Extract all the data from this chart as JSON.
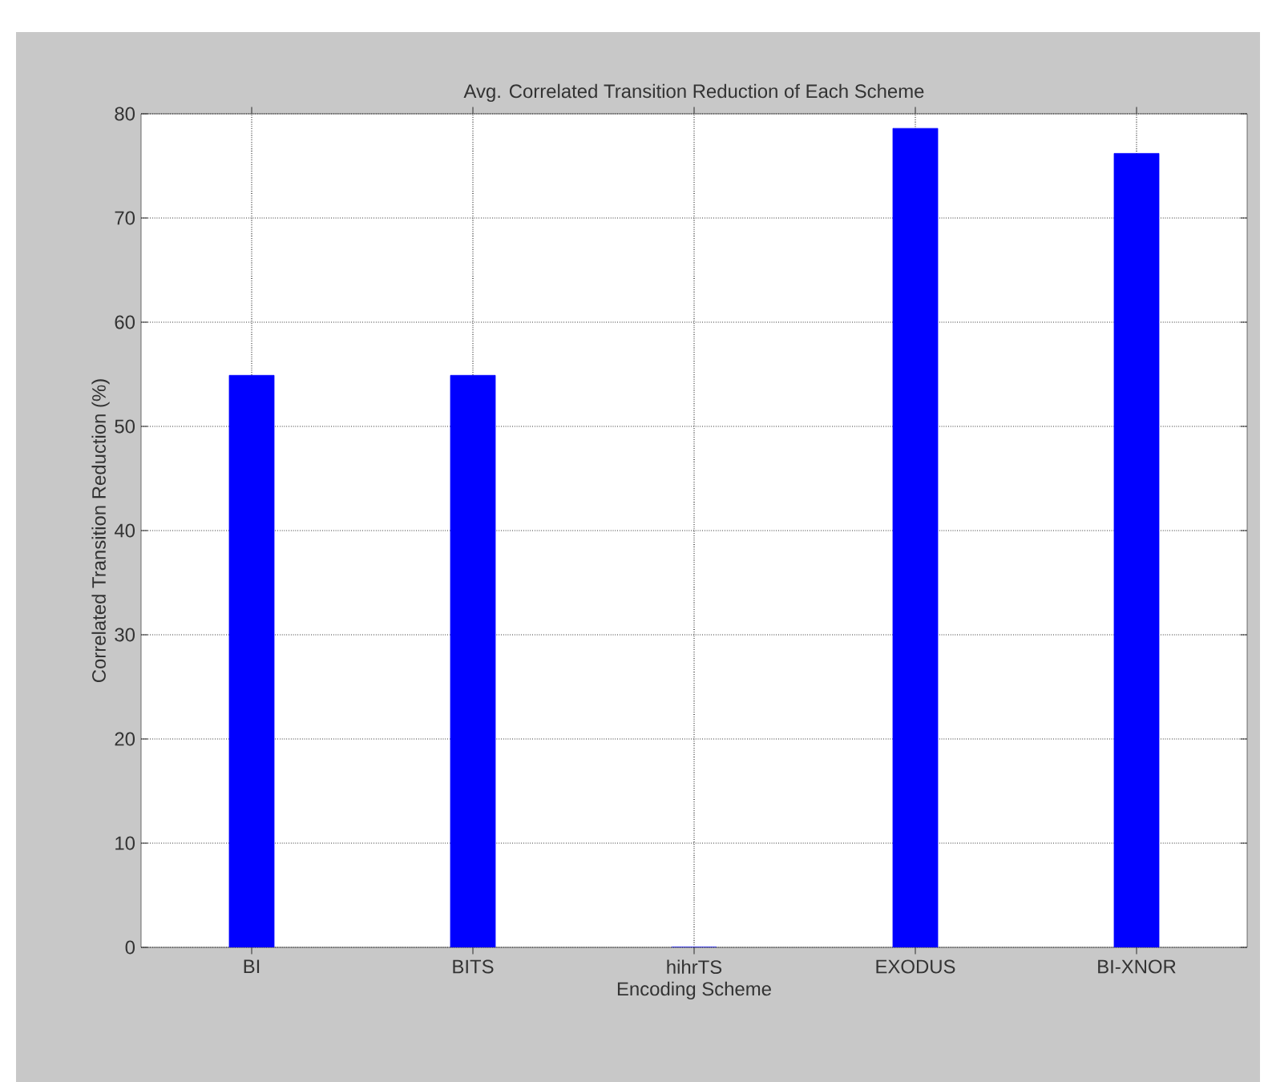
{
  "chart_data": {
    "type": "bar",
    "title": "Avg. Correlated Transition Reduction of Each Scheme",
    "xlabel": "Encoding Scheme",
    "ylabel": "Correlated Transition Reduction (%)",
    "categories": [
      "BI",
      "BITS",
      "hihrTS",
      "EXODUS",
      "BI-XNOR"
    ],
    "values": [
      54.9,
      54.9,
      0,
      78.6,
      76.2
    ],
    "color": "#0000ff",
    "ylim": [
      0,
      80
    ],
    "yticks": [
      0,
      10,
      20,
      30,
      40,
      50,
      60,
      70,
      80
    ],
    "grid": true
  }
}
